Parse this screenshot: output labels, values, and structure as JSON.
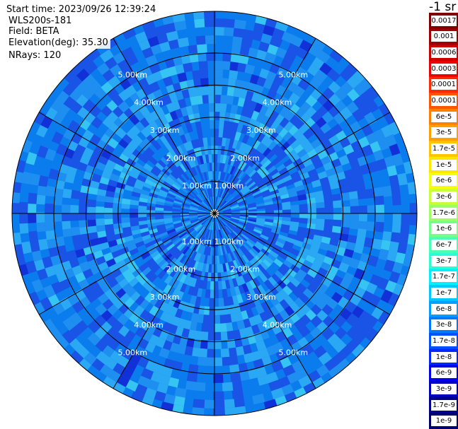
{
  "header": {
    "start_time": "Start time: 2023/09/26 12:39:24",
    "instrument": "WLS200s-181",
    "field": "Field: BETA",
    "elevation": "Elevation(deg): 35.30",
    "nrays": "NRays: 120"
  },
  "colorbar": {
    "unit": "-1 sr",
    "labels": [
      "0.0017",
      "0.001",
      "0.0006",
      "0.0003",
      "0.00017",
      "0.0001",
      "6e-5",
      "3e-5",
      "1.7e-5",
      "1e-5",
      "6e-6",
      "3e-6",
      "1.7e-6",
      "1e-6",
      "6e-7",
      "3e-7",
      "1.7e-7",
      "1e-7",
      "6e-8",
      "3e-8",
      "1.7e-8",
      "1e-8",
      "6e-9",
      "3e-9",
      "1.7e-9",
      "1e-9"
    ],
    "colors": [
      "#7f0000",
      "#a00000",
      "#c80000",
      "#ee0000",
      "#ff2a00",
      "#ff5500",
      "#ff8000",
      "#ffa000",
      "#ffc400",
      "#ffe600",
      "#f2ff0d",
      "#c8ff37",
      "#9cff62",
      "#74ff8b",
      "#4dffb2",
      "#2affd4",
      "#00f0ff",
      "#00c8ff",
      "#00a0ff",
      "#0078ff",
      "#0050ff",
      "#0028ff",
      "#0000ee",
      "#0000c0",
      "#000090",
      "#000070"
    ]
  },
  "chart_data": {
    "type": "ppi",
    "field": "BETA",
    "unit": "sr-1",
    "elevation_deg": 35.3,
    "n_rays": 120,
    "range_rings_km": [
      1,
      2,
      3,
      4,
      5
    ],
    "range_labels": [
      "1.00km",
      "2.00km",
      "3.00km",
      "4.00km",
      "5.00km"
    ],
    "max_range_km": 6.3,
    "spokes_deg": [
      0,
      30,
      60,
      90,
      120,
      150,
      180,
      210,
      240,
      270,
      300,
      330
    ],
    "label_azimuths_deg": [
      30,
      150,
      210,
      330
    ],
    "typical_beta": "1e-8 to 1e-7",
    "colors": {
      "base": "#0a7ced",
      "dark": "#1a54e6",
      "mid": "#1e8ef0",
      "light": "#2aa8f4",
      "cyan": "#36c4f2",
      "deep": "#1230d8"
    }
  }
}
